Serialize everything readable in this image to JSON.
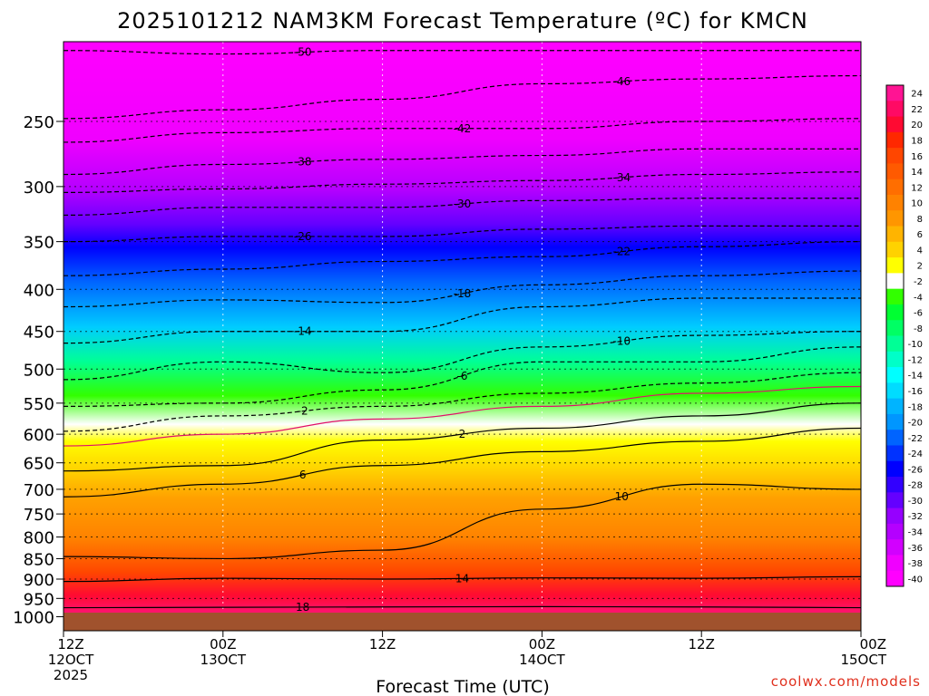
{
  "chart_data": {
    "type": "heatmap",
    "title": "2025101212 NAM3KM Forecast Temperature (ºC) for KMCN",
    "xlabel": "Forecast Time (UTC)",
    "ylabel": "",
    "credit": "coolwx.com/models",
    "x_ticks": [
      {
        "hours": 0,
        "line1": "12Z",
        "line2": "12OCT",
        "line3": "2025"
      },
      {
        "hours": 12,
        "line1": "00Z",
        "line2": "13OCT",
        "line3": ""
      },
      {
        "hours": 24,
        "line1": "12Z",
        "line2": "",
        "line3": ""
      },
      {
        "hours": 36,
        "line1": "00Z",
        "line2": "14OCT",
        "line3": ""
      },
      {
        "hours": 48,
        "line1": "12Z",
        "line2": "",
        "line3": ""
      },
      {
        "hours": 60,
        "line1": "00Z",
        "line2": "15OCT",
        "line3": ""
      }
    ],
    "x_range_hours": [
      0,
      60
    ],
    "y_axis": "pressure (hPa), log scale, inverted",
    "y_range": [
      1040,
      200
    ],
    "y_ticks": [
      "250",
      "300",
      "350",
      "400",
      "450",
      "500",
      "550",
      "600",
      "650",
      "700",
      "750",
      "800",
      "850",
      "900",
      "950",
      "1000"
    ],
    "surface_pressure_hPa": 995,
    "colorbar_labels": [
      "24",
      "22",
      "20",
      "18",
      "16",
      "14",
      "12",
      "10",
      "8",
      "6",
      "4",
      "2",
      "-2",
      "-4",
      "-6",
      "-8",
      "-10",
      "-12",
      "-14",
      "-16",
      "-18",
      "-20",
      "-22",
      "-24",
      "-26",
      "-28",
      "-30",
      "-32",
      "-34",
      "-36",
      "-38",
      "-40"
    ],
    "colorbar_colors": [
      "#ff1493",
      "#ff0a64",
      "#ff0a32",
      "#ff2800",
      "#ff4600",
      "#ff5a00",
      "#ff6e00",
      "#ff8200",
      "#ff9600",
      "#ffb400",
      "#ffd200",
      "#ffff00",
      "#ffffff",
      "#32ff00",
      "#00ff32",
      "#00ff64",
      "#00ff96",
      "#00ffc8",
      "#00ffff",
      "#00dcff",
      "#00b4ff",
      "#0096ff",
      "#0064ff",
      "#0032ff",
      "#0000ff",
      "#3200ff",
      "#6400ff",
      "#9600ff",
      "#b400ff",
      "#d200ff",
      "#f000ff",
      "#ff00ff"
    ],
    "isotherms": [
      {
        "label": "18",
        "p": [
          975,
          974,
          973,
          972,
          973,
          975
        ],
        "style": "solid"
      },
      {
        "label": "14",
        "p": [
          906,
          898,
          900,
          897,
          898,
          894
        ],
        "style": "solid"
      },
      {
        "label": "10",
        "p": [
          845,
          850,
          830,
          740,
          690,
          700
        ],
        "style": "solid"
      },
      {
        "label": "6",
        "p": [
          715,
          690,
          655,
          630,
          612,
          590
        ],
        "style": "solid"
      },
      {
        "label": "2",
        "p": [
          665,
          655,
          610,
          590,
          570,
          550
        ],
        "style": "solid"
      },
      {
        "label": "0",
        "p": [
          620,
          600,
          575,
          555,
          535,
          525
        ],
        "style": "freezing"
      },
      {
        "label": "-2",
        "p": [
          595,
          570,
          555,
          535,
          520,
          505
        ],
        "style": "dashed"
      },
      {
        "label": "-6",
        "p": [
          555,
          550,
          530,
          490,
          490,
          470
        ],
        "style": "dashed"
      },
      {
        "label": "-10",
        "p": [
          515,
          490,
          505,
          470,
          455,
          450
        ],
        "style": "dashed"
      },
      {
        "label": "-14",
        "p": [
          465,
          450,
          450,
          420,
          410,
          410
        ],
        "style": "dashed"
      },
      {
        "label": "-18",
        "p": [
          420,
          412,
          415,
          395,
          385,
          380
        ],
        "style": "dashed"
      },
      {
        "label": "-22",
        "p": [
          385,
          378,
          370,
          365,
          355,
          350
        ],
        "style": "dashed"
      },
      {
        "label": "-26",
        "p": [
          350,
          345,
          345,
          338,
          335,
          335
        ],
        "style": "dashed"
      },
      {
        "label": "-30",
        "p": [
          325,
          318,
          318,
          312,
          310,
          310
        ],
        "style": "dashed"
      },
      {
        "label": "-34",
        "p": [
          305,
          302,
          298,
          295,
          290,
          288
        ],
        "style": "dashed"
      },
      {
        "label": "-38",
        "p": [
          290,
          282,
          278,
          275,
          270,
          270
        ],
        "style": "dashed"
      },
      {
        "label": "-42",
        "p": [
          265,
          258,
          255,
          255,
          250,
          248
        ],
        "style": "dashed"
      },
      {
        "label": "-46",
        "p": [
          248,
          242,
          235,
          225,
          222,
          220
        ],
        "style": "dashed"
      },
      {
        "label": "-50",
        "p": [
          205,
          207,
          205,
          205,
          205,
          205
        ],
        "style": "dashed"
      }
    ]
  }
}
